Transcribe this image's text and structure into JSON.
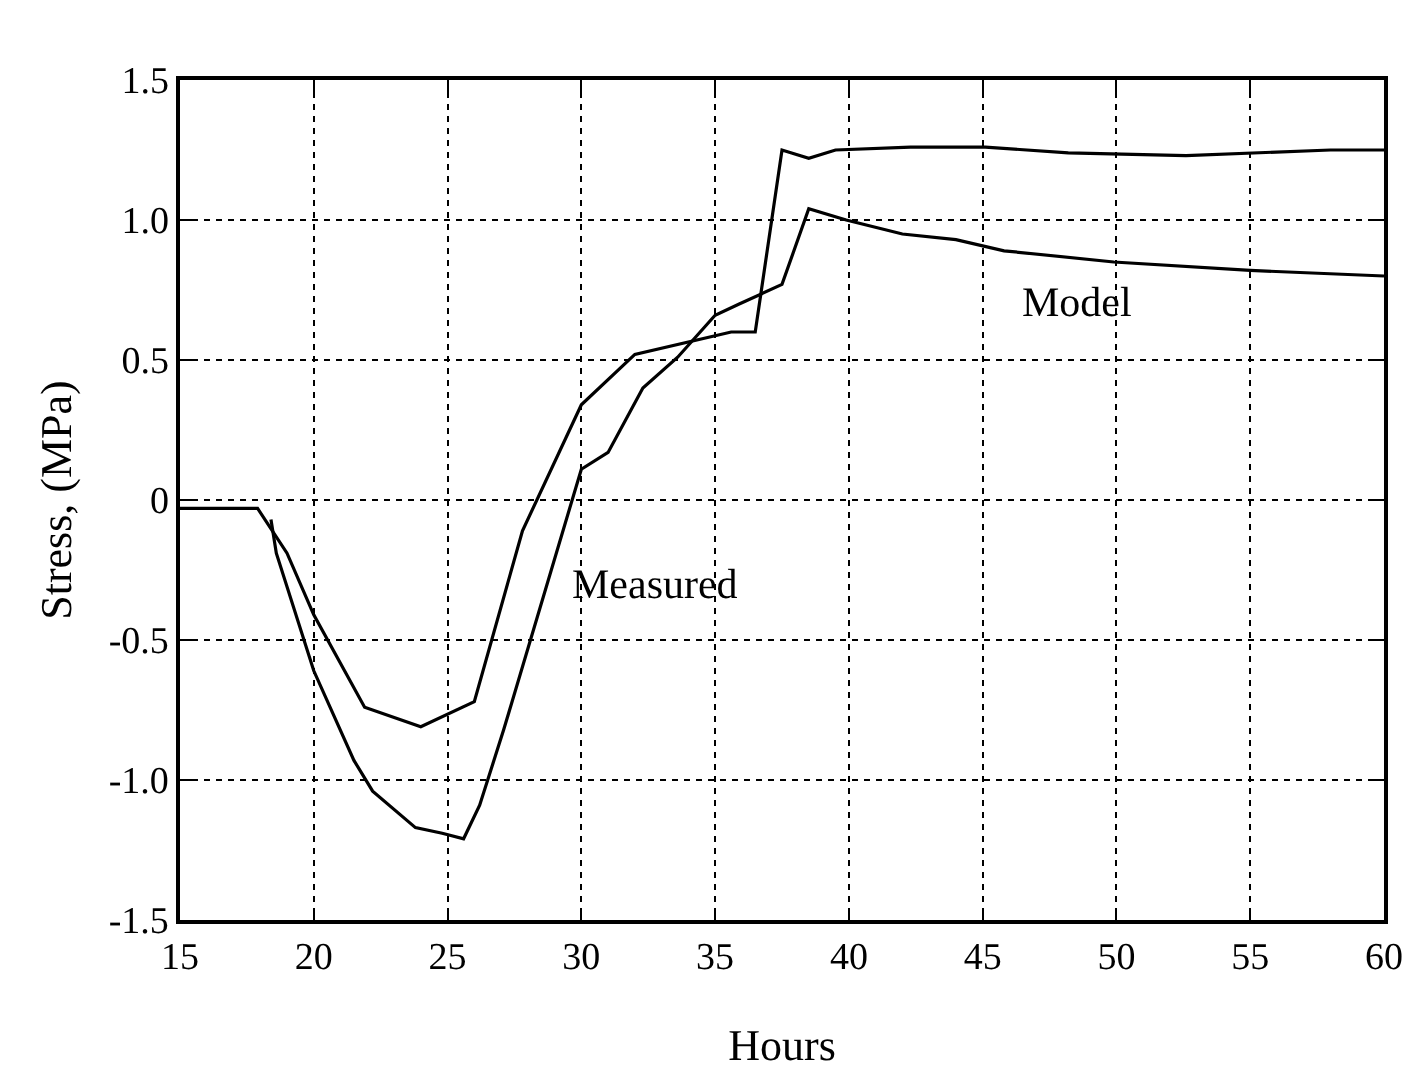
{
  "chart_data": {
    "type": "line",
    "xlabel": "Hours",
    "ylabel": "Stress, (MPa)",
    "xlim": [
      15,
      60
    ],
    "xticks": [
      15,
      20,
      25,
      30,
      35,
      40,
      45,
      50,
      55,
      60
    ],
    "ylim": [
      -1.5,
      1.5
    ],
    "yticks": [
      -1.5,
      {
        "value": -1,
        "label": "-1.0"
      },
      -0.5,
      0,
      0.5,
      {
        "value": 1,
        "label": "1.0"
      },
      1.5
    ],
    "grid": true,
    "line_style": "solid",
    "series": [
      {
        "color": "#000000",
        "x": [
          15,
          17.9,
          19,
          20,
          21.9,
          24,
          26,
          27.8,
          30,
          32,
          35.6,
          36.5,
          37.5,
          38.5,
          39.5,
          42.3,
          45.1,
          48.2,
          52.6,
          58,
          60
        ],
        "values": [
          -0.03,
          -0.03,
          -0.19,
          -0.41,
          -0.74,
          -0.81,
          -0.72,
          -0.11,
          0.34,
          0.52,
          0.6,
          0.6,
          1.25,
          1.22,
          1.25,
          1.26,
          1.26,
          1.24,
          1.23,
          1.25,
          1.25
        ]
      },
      {
        "color": "#000000",
        "x": [
          18.4,
          18.6,
          20,
          21.5,
          22.2,
          23.8,
          24.8,
          25.6,
          26.2,
          27.1,
          30,
          31,
          32.3,
          33.6,
          35,
          35.9,
          37.5,
          38.5,
          39.9,
          42,
          44,
          45.8,
          49.9,
          55,
          60
        ],
        "values": [
          -0.07,
          -0.19,
          -0.61,
          -0.93,
          -1.04,
          -1.17,
          -1.19,
          -1.21,
          -1.09,
          -0.82,
          0.11,
          0.17,
          0.4,
          0.51,
          0.66,
          0.7,
          0.77,
          1.04,
          1,
          0.95,
          0.93,
          0.89,
          0.85,
          0.82,
          0.8
        ]
      }
    ],
    "annotations": [
      "Measured",
      "Model"
    ]
  }
}
